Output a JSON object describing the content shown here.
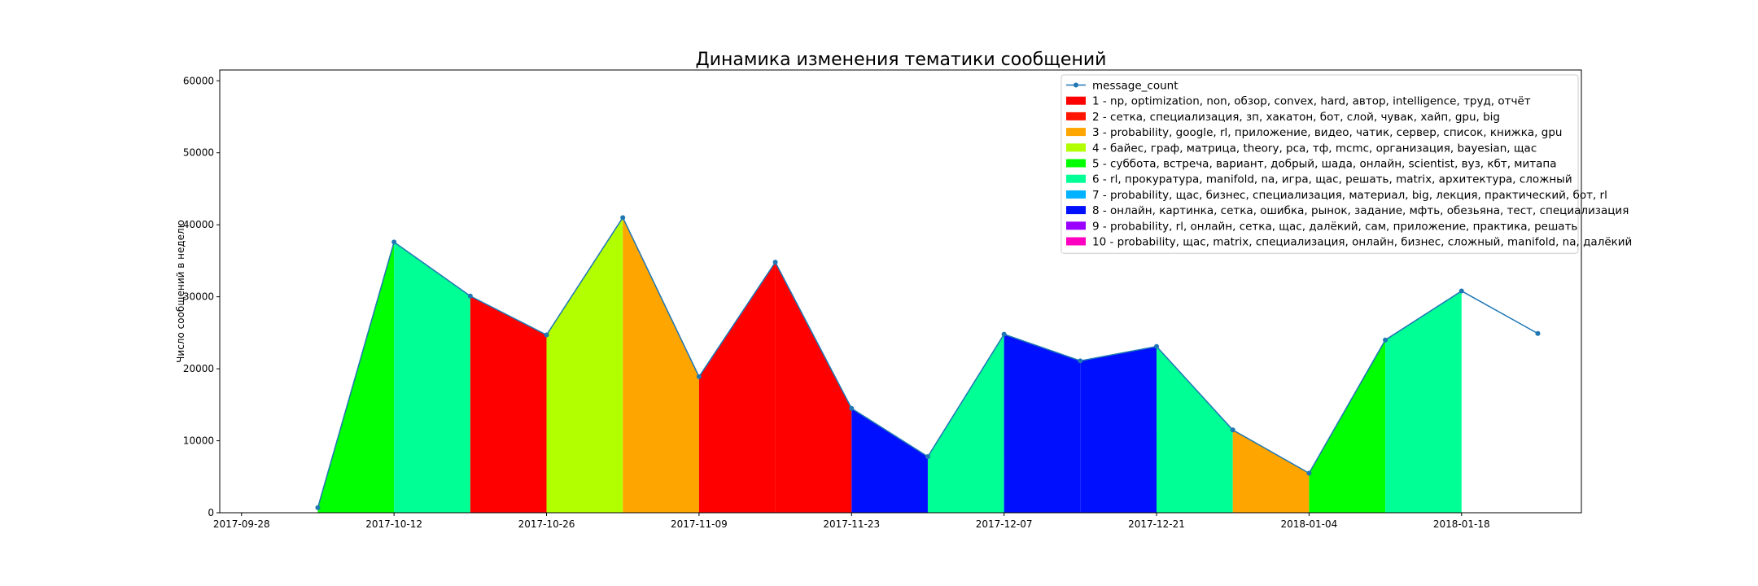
{
  "chart_data": {
    "type": "area",
    "title": "Динамика изменения тематики сообщений",
    "xlabel": "",
    "ylabel": "Число сообщений в неделю",
    "ylim": [
      0,
      61500
    ],
    "yticks": [
      0,
      10000,
      20000,
      30000,
      40000,
      50000,
      60000
    ],
    "xlim": [
      "2017-09-26",
      "2018-01-29"
    ],
    "xticks": [
      "2017-09-28",
      "2017-10-12",
      "2017-10-26",
      "2017-11-09",
      "2017-11-23",
      "2017-12-07",
      "2017-12-21",
      "2018-01-04",
      "2018-01-18"
    ],
    "grid": false,
    "legend_position": "top-right",
    "line_series": {
      "name": "message_count",
      "color": "#1f77b4",
      "x": [
        "2017-10-05",
        "2017-10-12",
        "2017-10-19",
        "2017-10-26",
        "2017-11-02",
        "2017-11-09",
        "2017-11-16",
        "2017-11-23",
        "2017-11-30",
        "2017-12-07",
        "2017-12-14",
        "2017-12-21",
        "2017-12-28",
        "2018-01-04",
        "2018-01-11",
        "2018-01-18",
        "2018-01-25"
      ],
      "y": [
        700,
        37600,
        30100,
        24700,
        41000,
        18900,
        34800,
        14500,
        7800,
        24800,
        21100,
        23100,
        11500,
        5500,
        24000,
        30800,
        24900
      ]
    },
    "topics": [
      {
        "label": "1 - np, optimization, non, обзор, convex, hard, автор, intelligence, труд, отчёт",
        "color": "#ff0000"
      },
      {
        "label": "2 - сетка, специализация, зп, хакатон, бот, слой, чувак, хайп, gpu, big",
        "color": "#ff1500"
      },
      {
        "label": "3 - probability, google, rl, приложение, видео, чатик, сервер, список, книжка, gpu",
        "color": "#ffa500"
      },
      {
        "label": "4 - байес, граф, матрица, theory, pca, тф, mcmc, организация, bayesian, щас",
        "color": "#b2ff00"
      },
      {
        "label": "5 - суббота, встреча, вариант, добрый, шада, онлайн, scientist, вуз, кбт, митапа",
        "color": "#00ff00"
      },
      {
        "label": "6 - rl, прокуратура, manifold, na, игра, щас, решать, matrix, архитектура, сложный",
        "color": "#00ff95"
      },
      {
        "label": "7 - probability, щас, бизнес, специализация, материал, big, лекция, практический, бот, rl",
        "color": "#00b2ff"
      },
      {
        "label": "8 - онлайн, картинка, сетка, ошибка, рынок, задание, мфть, обезьяна, тест, специализация",
        "color": "#0010ff"
      },
      {
        "label": "9 - probability, rl, онлайн, сетка, щас, далёкий, сам, приложение, практика, решать",
        "color": "#9900ff"
      },
      {
        "label": "10 - probability, щас, matrix, специализация, онлайн, бизнес, сложный, manifold, na, далёкий",
        "color": "#ff00c0"
      }
    ],
    "segment_topics": [
      5,
      6,
      1,
      4,
      3,
      1,
      1,
      8,
      6,
      8,
      8,
      6,
      3,
      5,
      6
    ]
  }
}
